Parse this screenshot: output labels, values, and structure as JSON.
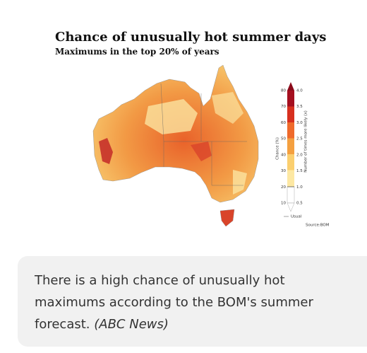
{
  "figure": {
    "title": "Chance of unusually hot summer days",
    "subtitle": "Maximums in the top 20% of years",
    "legend": {
      "chance_title": "Chance (%)",
      "likely_title": "Number of times more likely (x)",
      "chance_labels": [
        "80",
        "70",
        "60",
        "50",
        "40",
        "30",
        "20",
        "10"
      ],
      "likely_labels": [
        "4.0",
        "3.5",
        "3.0",
        "2.5",
        "2.0",
        "1.5",
        "1.0",
        "0.5"
      ],
      "usual": "Usual"
    },
    "source": "Source:BOM"
  },
  "caption": {
    "text": "There is a high chance of unusually hot maximums according to the BOM's summer forecast.",
    "credit": "(ABC News)"
  }
}
